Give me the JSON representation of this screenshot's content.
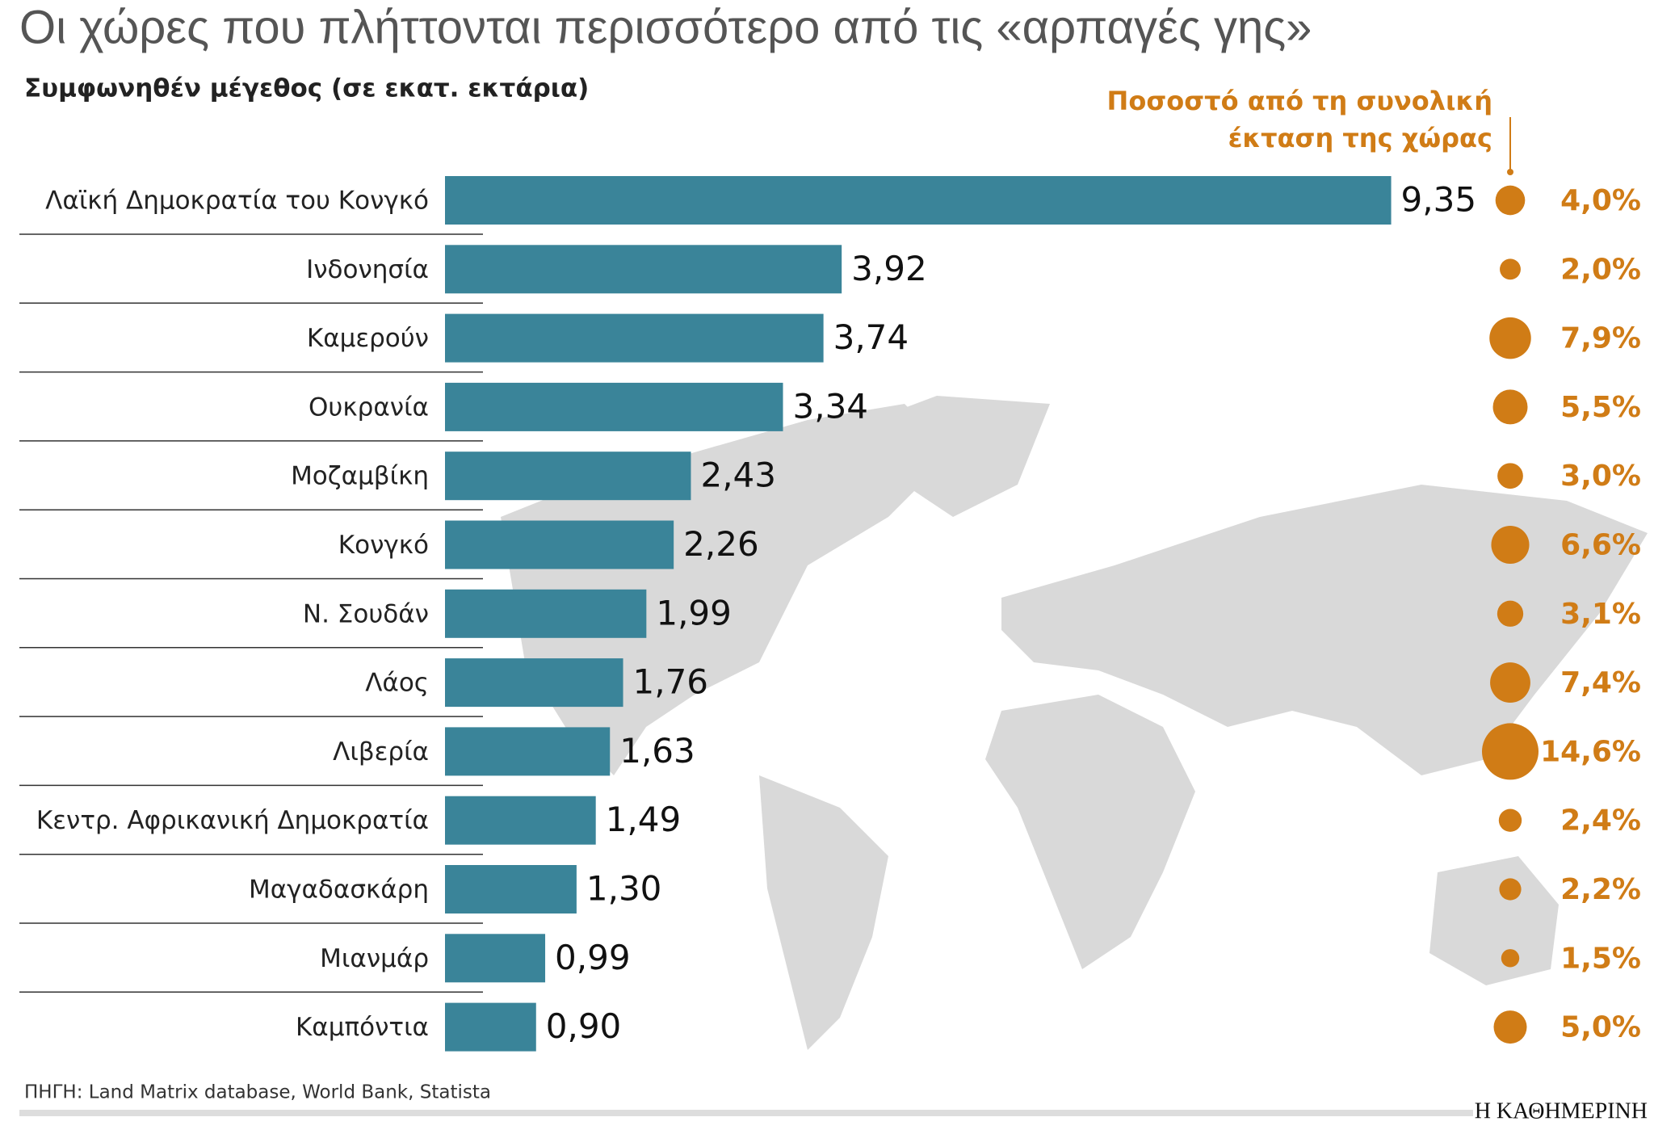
{
  "chart_data": {
    "type": "bar",
    "title": "Οι χώρες που πλήττονται περισσότερο από τις «αρπαγές γης»",
    "subtitle": "Συμφωνηθέν μέγεθος (σε εκατ. εκτάρια)",
    "categories": [
      "Λαϊκή Δημοκρατία του Κονγκό",
      "Ινδονησία",
      "Καμερούν",
      "Ουκρανία",
      "Μοζαμβίκη",
      "Κονγκό",
      "Ν. Σουδάν",
      "Λάος",
      "Λιβερία",
      "Κεντρ. Αφρικανική Δημοκρατία",
      "Μαγαδασκάρη",
      "Μιανμάρ",
      "Καμπόντια"
    ],
    "values": [
      9.35,
      3.92,
      3.74,
      3.34,
      2.43,
      2.26,
      1.99,
      1.76,
      1.63,
      1.49,
      1.3,
      0.99,
      0.9
    ],
    "value_labels": [
      "9,35",
      "3,92",
      "3,74",
      "3,34",
      "2,43",
      "2,26",
      "1,99",
      "1,76",
      "1,63",
      "1,49",
      "1,30",
      "0,99",
      "0,90"
    ],
    "color": "#3a8499",
    "share": {
      "title": [
        "Ποσοστό από τη συνολική",
        "έκταση της χώρας"
      ],
      "color": "#d07c16",
      "values": [
        4.0,
        2.0,
        7.9,
        5.5,
        3.0,
        6.6,
        3.1,
        7.4,
        14.6,
        2.4,
        2.2,
        1.5,
        5.0
      ],
      "value_labels": [
        "4,0%",
        "2,0%",
        "7,9%",
        "5,5%",
        "3,0%",
        "6,6%",
        "3,1%",
        "7,4%",
        "14,6%",
        "2,4%",
        "2,2%",
        "1,5%",
        "5,0%"
      ]
    },
    "source": "ΠΗΓΗ: Land Matrix database, World Bank, Statista",
    "publisher": "Η ΚΑΘΗΜΕΡΙΝΗ"
  }
}
